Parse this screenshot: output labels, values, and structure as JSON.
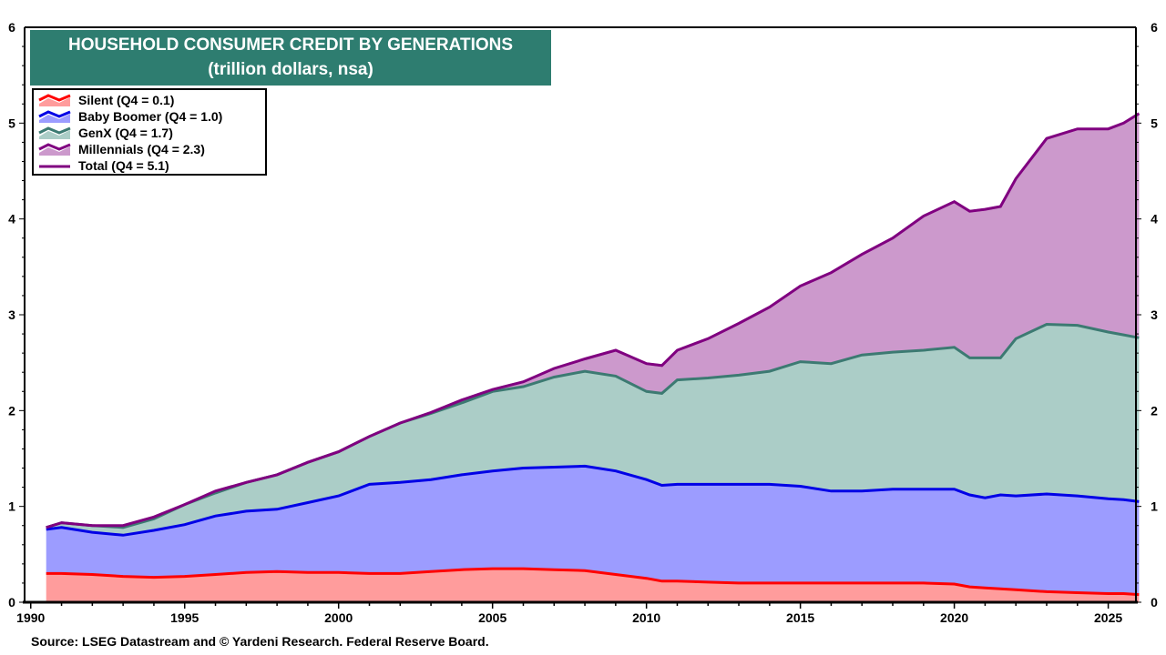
{
  "chart_data": {
    "type": "area",
    "stacked": true,
    "title": "HOUSEHOLD CONSUMER CREDIT BY GENERATIONS",
    "subtitle": "(trillion dollars, nsa)",
    "xlabel": "",
    "ylabel": "",
    "xlim": [
      1989.8,
      2025.9
    ],
    "ylim": [
      0,
      6
    ],
    "x_ticks": [
      "1990",
      "1995",
      "2000",
      "2005",
      "2010",
      "2015",
      "2020",
      "2025"
    ],
    "y_ticks": [
      "0",
      "1",
      "2",
      "3",
      "4",
      "5",
      "6"
    ],
    "grid": false,
    "legend_placement": "top-left",
    "x": [
      1990.5,
      1991,
      1992,
      1993,
      1994,
      1995,
      1996,
      1997,
      1998,
      1999,
      2000,
      2001,
      2002,
      2003,
      2004,
      2005,
      2006,
      2007,
      2008,
      2009,
      2010,
      2010.5,
      2011,
      2012,
      2013,
      2014,
      2015,
      2016,
      2017,
      2018,
      2019,
      2020,
      2020.5,
      2021,
      2021.5,
      2022,
      2023,
      2024,
      2025,
      2025.5,
      2026
    ],
    "series": [
      {
        "name": "Silent (Q4 = 0.1)",
        "fill": "#ff9c9c",
        "line": "#ff0000",
        "values": [
          0.3,
          0.3,
          0.29,
          0.27,
          0.26,
          0.27,
          0.29,
          0.31,
          0.32,
          0.31,
          0.31,
          0.3,
          0.3,
          0.32,
          0.34,
          0.35,
          0.35,
          0.34,
          0.33,
          0.29,
          0.25,
          0.22,
          0.22,
          0.21,
          0.2,
          0.2,
          0.2,
          0.2,
          0.2,
          0.2,
          0.2,
          0.19,
          0.16,
          0.15,
          0.14,
          0.13,
          0.11,
          0.1,
          0.09,
          0.09,
          0.08
        ]
      },
      {
        "name": "Baby Boomer (Q4 = 1.0)",
        "fill": "#9c9cff",
        "line": "#0000e6",
        "values": [
          0.46,
          0.48,
          0.44,
          0.43,
          0.49,
          0.54,
          0.61,
          0.64,
          0.65,
          0.73,
          0.8,
          0.93,
          0.95,
          0.96,
          0.99,
          1.02,
          1.05,
          1.07,
          1.09,
          1.08,
          1.03,
          1.0,
          1.01,
          1.02,
          1.03,
          1.03,
          1.01,
          0.96,
          0.96,
          0.98,
          0.98,
          0.99,
          0.96,
          0.94,
          0.98,
          0.98,
          1.02,
          1.01,
          0.99,
          0.98,
          0.97
        ]
      },
      {
        "name": "GenX (Q4 = 1.7)",
        "fill": "#abcdc7",
        "line": "#3c7a72",
        "values": [
          0.02,
          0.05,
          0.07,
          0.08,
          0.12,
          0.21,
          0.24,
          0.3,
          0.36,
          0.42,
          0.46,
          0.5,
          0.62,
          0.69,
          0.75,
          0.83,
          0.85,
          0.94,
          0.99,
          0.99,
          0.92,
          0.96,
          1.09,
          1.11,
          1.14,
          1.18,
          1.3,
          1.33,
          1.42,
          1.43,
          1.45,
          1.48,
          1.43,
          1.46,
          1.43,
          1.64,
          1.77,
          1.78,
          1.74,
          1.72,
          1.71
        ]
      },
      {
        "name": "Millennials (Q4 = 2.3)",
        "fill": "#cc99cc",
        "line": "#800080",
        "values": [
          0,
          0,
          0,
          0.02,
          0.02,
          0,
          0.02,
          0,
          0,
          0,
          0,
          0,
          0,
          0.01,
          0.03,
          0.02,
          0.05,
          0.09,
          0.13,
          0.27,
          0.29,
          0.29,
          0.31,
          0.41,
          0.54,
          0.67,
          0.79,
          0.95,
          1.05,
          1.19,
          1.4,
          1.52,
          1.53,
          1.55,
          1.58,
          1.67,
          1.94,
          2.05,
          2.12,
          2.21,
          2.34
        ]
      }
    ],
    "total": {
      "name": "Total (Q4 = 5.1)",
      "line": "#800080",
      "values": [
        0.78,
        0.83,
        0.8,
        0.8,
        0.89,
        1.02,
        1.16,
        1.25,
        1.33,
        1.46,
        1.57,
        1.73,
        1.87,
        1.98,
        2.11,
        2.22,
        2.3,
        2.44,
        2.54,
        2.63,
        2.49,
        2.47,
        2.63,
        2.75,
        2.91,
        3.08,
        3.3,
        3.44,
        3.63,
        3.8,
        4.03,
        4.18,
        4.08,
        4.1,
        4.13,
        4.42,
        4.84,
        4.94,
        4.94,
        5.0,
        5.1
      ]
    },
    "source": "Source: LSEG Datastream and © Yardeni Research. Federal Reserve Board."
  },
  "colors": {
    "title_bg": "#2e7d70",
    "title_text": "#ffffff"
  }
}
